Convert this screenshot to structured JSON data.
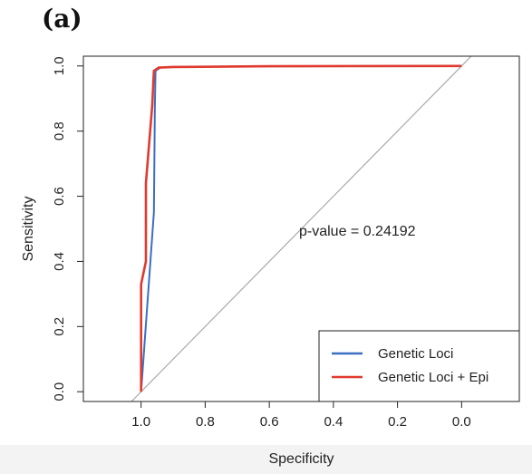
{
  "panel_label": "(a)",
  "chart_data": {
    "type": "line",
    "title": "",
    "xlabel": "Specificity",
    "ylabel": "Sensitivity",
    "x_reversed": true,
    "xlim": [
      1.18,
      -0.18
    ],
    "ylim": [
      -0.03,
      1.03
    ],
    "x_ticks": [
      1.0,
      0.8,
      0.6,
      0.4,
      0.2,
      0.0
    ],
    "x_tick_labels": [
      "1.0",
      "0.8",
      "0.6",
      "0.4",
      "0.2",
      "0.0"
    ],
    "y_ticks": [
      0.0,
      0.2,
      0.4,
      0.6,
      0.8,
      1.0
    ],
    "y_tick_labels": [
      "0.0",
      "0.2",
      "0.4",
      "0.6",
      "0.8",
      "1.0"
    ],
    "annotation": "p-value = 0.24192",
    "legend_position": "bottom-right",
    "reference_line": {
      "color": "#aaaaaa",
      "points": [
        [
          1.0,
          0.0
        ],
        [
          0.0,
          1.0
        ]
      ]
    },
    "series": [
      {
        "name": "Genetic Loci",
        "color": "#3a6fc4",
        "points": [
          [
            1.0,
            0.0
          ],
          [
            0.96,
            0.55
          ],
          [
            0.957,
            0.88
          ],
          [
            0.955,
            0.985
          ],
          [
            0.94,
            0.995
          ],
          [
            0.9,
            0.997
          ],
          [
            0.6,
            0.999
          ],
          [
            0.0,
            1.0
          ]
        ]
      },
      {
        "name": "Genetic Loci + Epi",
        "color": "#e03a2f",
        "points": [
          [
            1.0,
            0.0
          ],
          [
            1.0,
            0.33
          ],
          [
            0.985,
            0.4
          ],
          [
            0.985,
            0.64
          ],
          [
            0.965,
            0.88
          ],
          [
            0.96,
            0.985
          ],
          [
            0.945,
            0.995
          ],
          [
            0.9,
            0.997
          ],
          [
            0.6,
            0.999
          ],
          [
            0.0,
            1.0
          ]
        ]
      }
    ]
  }
}
